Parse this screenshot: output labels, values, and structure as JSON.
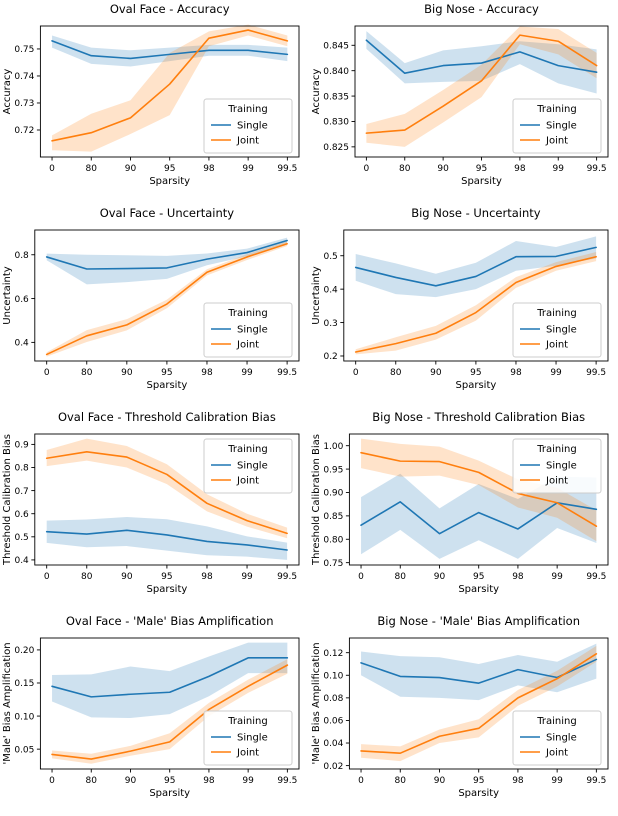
{
  "figure": {
    "background": "#ffffff",
    "axis_color": "#000000",
    "band_opacity": 0.22
  },
  "legend": {
    "title": "Training",
    "entries": [
      "Single",
      "Joint"
    ]
  },
  "colors": {
    "single": "#1f77b4",
    "joint": "#ff7f0e"
  },
  "chart_data": [
    {
      "type": "line",
      "title": "Oval Face - Accuracy",
      "xlabel": "Sparsity",
      "ylabel": "Accuracy",
      "x_ticklabels": [
        "0",
        "80",
        "90",
        "95",
        "98",
        "99",
        "99.5"
      ],
      "yticks": [
        0.72,
        0.73,
        0.74,
        0.75
      ],
      "ytick_decimals": 2,
      "ylim": [
        0.71,
        0.7585
      ],
      "legend_pos": "lower-right",
      "grid": false,
      "series": [
        {
          "name": "Single",
          "color": "#1f77b4",
          "values": [
            0.753,
            0.7475,
            0.7465,
            0.748,
            0.7495,
            0.7495,
            0.748
          ],
          "band_lo": [
            0.7505,
            0.7445,
            0.7435,
            0.7455,
            0.7475,
            0.7475,
            0.7455
          ],
          "band_hi": [
            0.755,
            0.7505,
            0.7495,
            0.7505,
            0.7515,
            0.7515,
            0.7505
          ]
        },
        {
          "name": "Joint",
          "color": "#ff7f0e",
          "values": [
            0.716,
            0.719,
            0.7245,
            0.737,
            0.754,
            0.757,
            0.753
          ],
          "band_lo": [
            0.7125,
            0.712,
            0.7185,
            0.7255,
            0.751,
            0.755,
            0.751
          ],
          "band_hi": [
            0.718,
            0.726,
            0.731,
            0.7485,
            0.7565,
            0.759,
            0.755
          ]
        }
      ]
    },
    {
      "type": "line",
      "title": "Big Nose - Accuracy",
      "xlabel": "Sparsity",
      "ylabel": "Accuracy",
      "x_ticklabels": [
        "0",
        "80",
        "90",
        "95",
        "98",
        "99",
        "99.5"
      ],
      "yticks": [
        0.825,
        0.83,
        0.835,
        0.84,
        0.845
      ],
      "ytick_decimals": 3,
      "ylim": [
        0.823,
        0.8488
      ],
      "legend_pos": "lower-right",
      "grid": false,
      "series": [
        {
          "name": "Single",
          "color": "#1f77b4",
          "values": [
            0.846,
            0.8395,
            0.841,
            0.8415,
            0.8437,
            0.841,
            0.8397
          ],
          "band_lo": [
            0.8443,
            0.8375,
            0.8378,
            0.838,
            0.8413,
            0.8375,
            0.8355
          ],
          "band_hi": [
            0.8478,
            0.8415,
            0.844,
            0.8448,
            0.8458,
            0.8452,
            0.8442
          ]
        },
        {
          "name": "Joint",
          "color": "#ff7f0e",
          "values": [
            0.8277,
            0.8283,
            0.833,
            0.838,
            0.847,
            0.8458,
            0.841
          ],
          "band_lo": [
            0.8258,
            0.825,
            0.8298,
            0.8348,
            0.8452,
            0.8432,
            0.8385
          ],
          "band_hi": [
            0.8295,
            0.8315,
            0.8362,
            0.8412,
            0.8487,
            0.8482,
            0.8435
          ]
        }
      ]
    },
    {
      "type": "line",
      "title": "Oval Face - Uncertainty",
      "xlabel": "Sparsity",
      "ylabel": "Uncertainty",
      "x_ticklabels": [
        "0",
        "80",
        "90",
        "95",
        "98",
        "99",
        "99.5"
      ],
      "yticks": [
        0.4,
        0.6,
        0.8
      ],
      "ytick_decimals": 1,
      "ylim": [
        0.315,
        0.913
      ],
      "legend_pos": "lower-right",
      "grid": false,
      "series": [
        {
          "name": "Single",
          "color": "#1f77b4",
          "values": [
            0.79,
            0.735,
            0.737,
            0.74,
            0.78,
            0.81,
            0.865
          ],
          "band_lo": [
            0.775,
            0.665,
            0.675,
            0.69,
            0.752,
            0.793,
            0.853
          ],
          "band_hi": [
            0.805,
            0.8,
            0.798,
            0.795,
            0.806,
            0.828,
            0.878
          ]
        },
        {
          "name": "Joint",
          "color": "#ff7f0e",
          "values": [
            0.345,
            0.43,
            0.48,
            0.575,
            0.72,
            0.79,
            0.85
          ],
          "band_lo": [
            0.335,
            0.402,
            0.455,
            0.556,
            0.706,
            0.776,
            0.84
          ],
          "band_hi": [
            0.355,
            0.456,
            0.506,
            0.595,
            0.734,
            0.803,
            0.861
          ]
        }
      ]
    },
    {
      "type": "line",
      "title": "Big Nose - Uncertainty",
      "xlabel": "Sparsity",
      "ylabel": "Uncertainty",
      "x_ticklabels": [
        "0",
        "80",
        "90",
        "95",
        "98",
        "99",
        "99.5"
      ],
      "yticks": [
        0.2,
        0.3,
        0.4,
        0.5
      ],
      "ytick_decimals": 1,
      "ylim": [
        0.185,
        0.577
      ],
      "legend_pos": "lower-right",
      "grid": false,
      "series": [
        {
          "name": "Single",
          "color": "#1f77b4",
          "values": [
            0.465,
            0.435,
            0.41,
            0.438,
            0.497,
            0.498,
            0.525
          ],
          "band_lo": [
            0.425,
            0.385,
            0.376,
            0.4,
            0.455,
            0.47,
            0.492
          ],
          "band_hi": [
            0.505,
            0.477,
            0.446,
            0.479,
            0.544,
            0.526,
            0.558
          ]
        },
        {
          "name": "Joint",
          "color": "#ff7f0e",
          "values": [
            0.212,
            0.237,
            0.268,
            0.33,
            0.42,
            0.468,
            0.497
          ],
          "band_lo": [
            0.205,
            0.216,
            0.249,
            0.306,
            0.404,
            0.455,
            0.484
          ],
          "band_hi": [
            0.22,
            0.256,
            0.29,
            0.352,
            0.436,
            0.481,
            0.511
          ]
        }
      ]
    },
    {
      "type": "line",
      "title": "Oval Face - Threshold Calibration Bias",
      "xlabel": "Sparsity",
      "ylabel": "Threshold Calibration Bias",
      "x_ticklabels": [
        "0",
        "80",
        "90",
        "95",
        "98",
        "99",
        "99.5"
      ],
      "yticks": [
        0.4,
        0.5,
        0.6,
        0.7,
        0.8,
        0.9
      ],
      "ytick_decimals": 1,
      "ylim": [
        0.378,
        0.945
      ],
      "legend_pos": "upper-right",
      "grid": false,
      "series": [
        {
          "name": "Single",
          "color": "#1f77b4",
          "values": [
            0.522,
            0.512,
            0.528,
            0.508,
            0.48,
            0.465,
            0.443
          ],
          "band_lo": [
            0.474,
            0.455,
            0.46,
            0.44,
            0.42,
            0.414,
            0.4
          ],
          "band_hi": [
            0.57,
            0.575,
            0.586,
            0.576,
            0.545,
            0.502,
            0.475
          ]
        },
        {
          "name": "Joint",
          "color": "#ff7f0e",
          "values": [
            0.84,
            0.868,
            0.845,
            0.77,
            0.645,
            0.57,
            0.515
          ],
          "band_lo": [
            0.806,
            0.83,
            0.8,
            0.728,
            0.61,
            0.544,
            0.494
          ],
          "band_hi": [
            0.876,
            0.925,
            0.893,
            0.814,
            0.684,
            0.6,
            0.54
          ]
        }
      ]
    },
    {
      "type": "line",
      "title": "Big Nose - Threshold Calibration Bias",
      "xlabel": "Sparsity",
      "ylabel": "Threshold Calibration Bias",
      "x_ticklabels": [
        "0",
        "80",
        "90",
        "95",
        "98",
        "99",
        "99.5"
      ],
      "yticks": [
        0.75,
        0.8,
        0.85,
        0.9,
        0.95,
        1.0
      ],
      "ytick_decimals": 2,
      "ylim": [
        0.745,
        1.025
      ],
      "legend_pos": "upper-right",
      "grid": false,
      "series": [
        {
          "name": "Single",
          "color": "#1f77b4",
          "values": [
            0.83,
            0.88,
            0.812,
            0.857,
            0.822,
            0.878,
            0.864
          ],
          "band_lo": [
            0.768,
            0.82,
            0.758,
            0.798,
            0.758,
            0.824,
            0.792
          ],
          "band_hi": [
            0.89,
            0.94,
            0.866,
            0.918,
            0.886,
            0.934,
            0.932
          ]
        },
        {
          "name": "Joint",
          "color": "#ff7f0e",
          "values": [
            0.985,
            0.967,
            0.966,
            0.943,
            0.898,
            0.878,
            0.828
          ],
          "band_lo": [
            0.952,
            0.934,
            0.936,
            0.916,
            0.868,
            0.846,
            0.796
          ],
          "band_hi": [
            1.015,
            1.004,
            0.998,
            0.968,
            0.928,
            0.91,
            0.862
          ]
        }
      ]
    },
    {
      "type": "line",
      "title": "Oval Face - 'Male' Bias Amplification",
      "xlabel": "Sparsity",
      "ylabel": "'Male' Bias Amplification",
      "x_ticklabels": [
        "0",
        "80",
        "90",
        "95",
        "98",
        "99",
        "99.5"
      ],
      "yticks": [
        0.05,
        0.1,
        0.15,
        0.2
      ],
      "ytick_decimals": 2,
      "ylim": [
        0.02,
        0.218
      ],
      "legend_pos": "lower-right",
      "grid": false,
      "series": [
        {
          "name": "Single",
          "color": "#1f77b4",
          "values": [
            0.145,
            0.129,
            0.133,
            0.136,
            0.16,
            0.188,
            0.188
          ],
          "band_lo": [
            0.122,
            0.098,
            0.097,
            0.103,
            0.13,
            0.165,
            0.165
          ],
          "band_hi": [
            0.162,
            0.163,
            0.175,
            0.168,
            0.19,
            0.211,
            0.211
          ]
        },
        {
          "name": "Joint",
          "color": "#ff7f0e",
          "values": [
            0.042,
            0.035,
            0.047,
            0.061,
            0.11,
            0.145,
            0.177
          ],
          "band_lo": [
            0.036,
            0.028,
            0.04,
            0.05,
            0.1,
            0.135,
            0.164
          ],
          "band_hi": [
            0.048,
            0.043,
            0.055,
            0.074,
            0.12,
            0.155,
            0.186
          ]
        }
      ]
    },
    {
      "type": "line",
      "title": "Big Nose - 'Male' Bias Amplification",
      "xlabel": "Sparsity",
      "ylabel": "'Male' Bias Amplification",
      "x_ticklabels": [
        "0",
        "80",
        "90",
        "95",
        "98",
        "99",
        "99.5"
      ],
      "yticks": [
        0.02,
        0.04,
        0.06,
        0.08,
        0.1,
        0.12
      ],
      "ytick_decimals": 2,
      "ylim": [
        0.017,
        0.133
      ],
      "legend_pos": "lower-right",
      "grid": false,
      "series": [
        {
          "name": "Single",
          "color": "#1f77b4",
          "values": [
            0.111,
            0.099,
            0.098,
            0.093,
            0.105,
            0.098,
            0.114
          ],
          "band_lo": [
            0.1,
            0.081,
            0.08,
            0.078,
            0.091,
            0.085,
            0.097
          ],
          "band_hi": [
            0.121,
            0.117,
            0.116,
            0.11,
            0.118,
            0.112,
            0.128
          ]
        },
        {
          "name": "Joint",
          "color": "#ff7f0e",
          "values": [
            0.033,
            0.031,
            0.046,
            0.053,
            0.08,
            0.097,
            0.119
          ],
          "band_lo": [
            0.027,
            0.024,
            0.04,
            0.045,
            0.073,
            0.09,
            0.112
          ],
          "band_hi": [
            0.039,
            0.037,
            0.052,
            0.061,
            0.087,
            0.104,
            0.126
          ]
        }
      ]
    }
  ]
}
